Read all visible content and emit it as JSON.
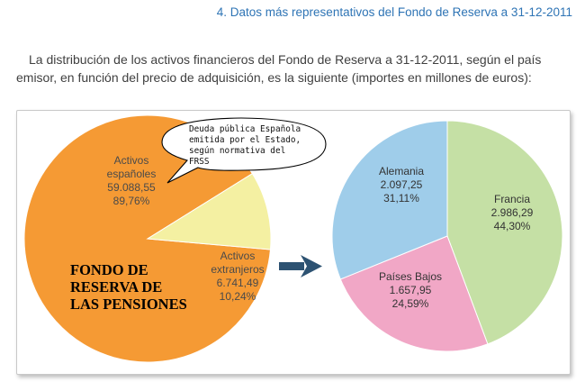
{
  "header": {
    "title": "4. Datos más representativos del Fondo de Reserva a 31-12-2011"
  },
  "intro": {
    "text": "La distribución de los activos financieros del Fondo de Reserva a 31-12-2011, según el país emisor, en función del precio de adquisición, es la siguiente (importes en millones de euros):"
  },
  "callout": {
    "lines": [
      "Deuda pública Española",
      "emitida por el Estado,",
      "según normativa del",
      "FRSS"
    ]
  },
  "fund_name": {
    "lines": [
      "FONDO DE",
      "RESERVA DE",
      "LAS PENSIONES"
    ]
  },
  "chart_data": [
    {
      "type": "pie",
      "slices": [
        {
          "label_lines": [
            "Activos",
            "españoles"
          ],
          "value": 59088.55,
          "value_text": "59.088,55",
          "percent_text": "89,76%",
          "color": "#f59a34"
        },
        {
          "label_lines": [
            "Activos",
            "extranjeros"
          ],
          "value": 6741.49,
          "value_text": "6.741,49",
          "percent_text": "10,24%",
          "color": "#f4f0a2"
        }
      ]
    },
    {
      "type": "pie",
      "slices": [
        {
          "label_lines": [
            "Francia"
          ],
          "value": 2986.29,
          "value_text": "2.986,29",
          "percent_text": "44,30%",
          "color": "#c5e0a5"
        },
        {
          "label_lines": [
            "Países Bajos"
          ],
          "value": 1657.95,
          "value_text": "1.657,95",
          "percent_text": "24,59%",
          "color": "#f1a7c6"
        },
        {
          "label_lines": [
            "Alemania"
          ],
          "value": 2097.25,
          "value_text": "2.097,25",
          "percent_text": "31,11%",
          "color": "#9fcdea"
        }
      ]
    }
  ],
  "colors": {
    "accent": "#2e74b5",
    "arrow": "#2d5272"
  }
}
